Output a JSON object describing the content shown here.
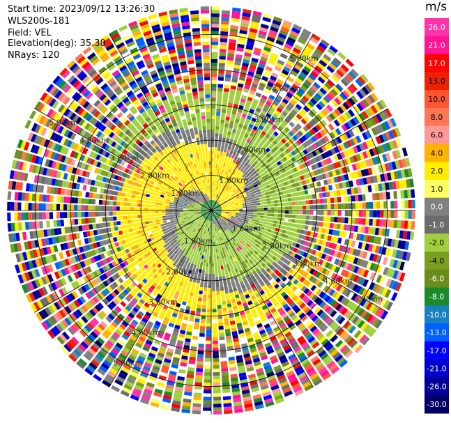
{
  "header": {
    "start_time": "Start time: 2023/09/12 13:26:30",
    "station": "WLS200s-181",
    "field": "Field: VEL",
    "elevation": "Elevation(deg): 35.30",
    "nrays": "NRays: 120"
  },
  "colorbar": {
    "unit": "m/s",
    "ticks": [
      "26.0",
      "21.0",
      "17.0",
      "13.0",
      "10.0",
      "8.0",
      "6.0",
      "4.0",
      "2.0",
      "1.0",
      "0.0",
      "-1.0",
      "-2.0",
      "-4.0",
      "-6.0",
      "-8.0",
      "-10.0",
      "-13.0",
      "-17.0",
      "-21.0",
      "-26.0",
      "-30.0"
    ],
    "colors": [
      "#ff33aa",
      "#ff1493",
      "#ff0000",
      "#ee2200",
      "#ff5533",
      "#ff7755",
      "#ff9999",
      "#ffb300",
      "#ffee00",
      "#ffff66",
      "#808080",
      "#6c6c6c",
      "#a0d040",
      "#7aa020",
      "#6a8c1a",
      "#1a8a2a",
      "#1a80c0",
      "#0060ff",
      "#0000ff",
      "#0000cc",
      "#000099",
      "#000066"
    ]
  },
  "chart_data": {
    "type": "heatmap",
    "subtype": "polar-ppi",
    "field": "VEL",
    "nrays": 120,
    "range_rings_km": [
      1,
      2,
      3,
      4,
      5
    ],
    "ring_labels": [
      "1.00km",
      "2.00km",
      "3.00km",
      "4.00km",
      "5.00km"
    ],
    "spokes_deg": 30,
    "max_range_km": 5.8
  }
}
